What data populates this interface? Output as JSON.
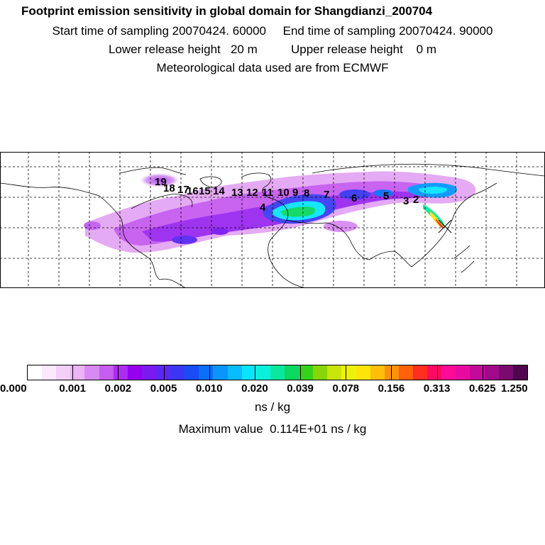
{
  "header": {
    "title": "Footprint emission sensitivity in global domain for Shangdianzi_200704",
    "line2": "Start time of sampling 20070424. 60000     End time of sampling 20070424. 90000",
    "line3": "Lower release height   20 m          Upper release height    0 m",
    "line4": "Meteorological data used are from ECMWF"
  },
  "map": {
    "day_markers": [
      "19",
      "18",
      "17",
      "16",
      "15",
      "14",
      "13",
      "12",
      "11",
      "10",
      "9",
      "8",
      "7",
      "6",
      "5",
      "3",
      "2",
      "4"
    ],
    "palette": [
      "#ffffff",
      "#fbe8fb",
      "#f4cff7",
      "#eab4f5",
      "#d98af2",
      "#c45df0",
      "#ac2cf0",
      "#9400ef",
      "#7a1af0",
      "#5a28f2",
      "#3a36f4",
      "#1a4cf6",
      "#0a6ef8",
      "#0896fa",
      "#09bcfb",
      "#0ae4fb",
      "#0af0da",
      "#0ae8a0",
      "#0ad860",
      "#35d21c",
      "#86d60a",
      "#c8e40a",
      "#eef20a",
      "#ffe40a",
      "#ffbe0a",
      "#ff920a",
      "#ff620a",
      "#ff2e1e",
      "#ff0a60",
      "#ff0a96",
      "#e80aa0",
      "#c40a9a",
      "#a00a8a",
      "#7a0a70",
      "#50064e"
    ]
  },
  "colorbar": {
    "ticks": [
      "0.000",
      "0.001",
      "0.002",
      "0.005",
      "0.010",
      "0.020",
      "0.039",
      "0.078",
      "0.156",
      "0.313",
      "0.625",
      "1.250"
    ],
    "unit": "ns / kg",
    "max_value_text": "Maximum value  0.114E+01 ns / kg"
  }
}
